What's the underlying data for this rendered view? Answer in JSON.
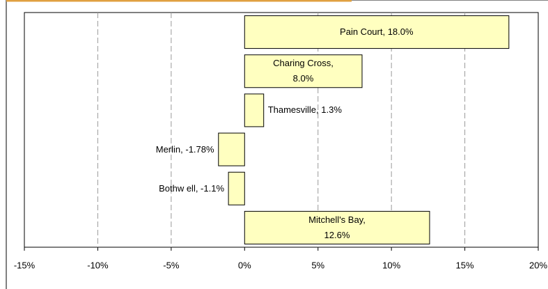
{
  "chart_data": {
    "type": "bar",
    "orientation": "horizontal",
    "values": [
      18.0,
      8.0,
      1.3,
      -1.78,
      -1.1,
      12.6
    ],
    "value_labels": [
      "Pain Court, 18.0%",
      "Charing Cross,\n8.0%",
      "Thamesville, 1.3%",
      "Merlin, -1.78%",
      "Bothw ell, -1.1%",
      "Mitchell's Bay,\n12.6%"
    ],
    "color": "#ffffc0",
    "xlim": [
      -15,
      20
    ],
    "xticks": [
      {
        "value": -15,
        "label": "-15%"
      },
      {
        "value": -10,
        "label": "-10%"
      },
      {
        "value": -5,
        "label": "-5%"
      },
      {
        "value": 0,
        "label": "0%"
      },
      {
        "value": 5,
        "label": "5%"
      },
      {
        "value": 10,
        "label": "10%"
      },
      {
        "value": 15,
        "label": "15%"
      },
      {
        "value": 20,
        "label": "20%"
      }
    ],
    "grid": true
  }
}
